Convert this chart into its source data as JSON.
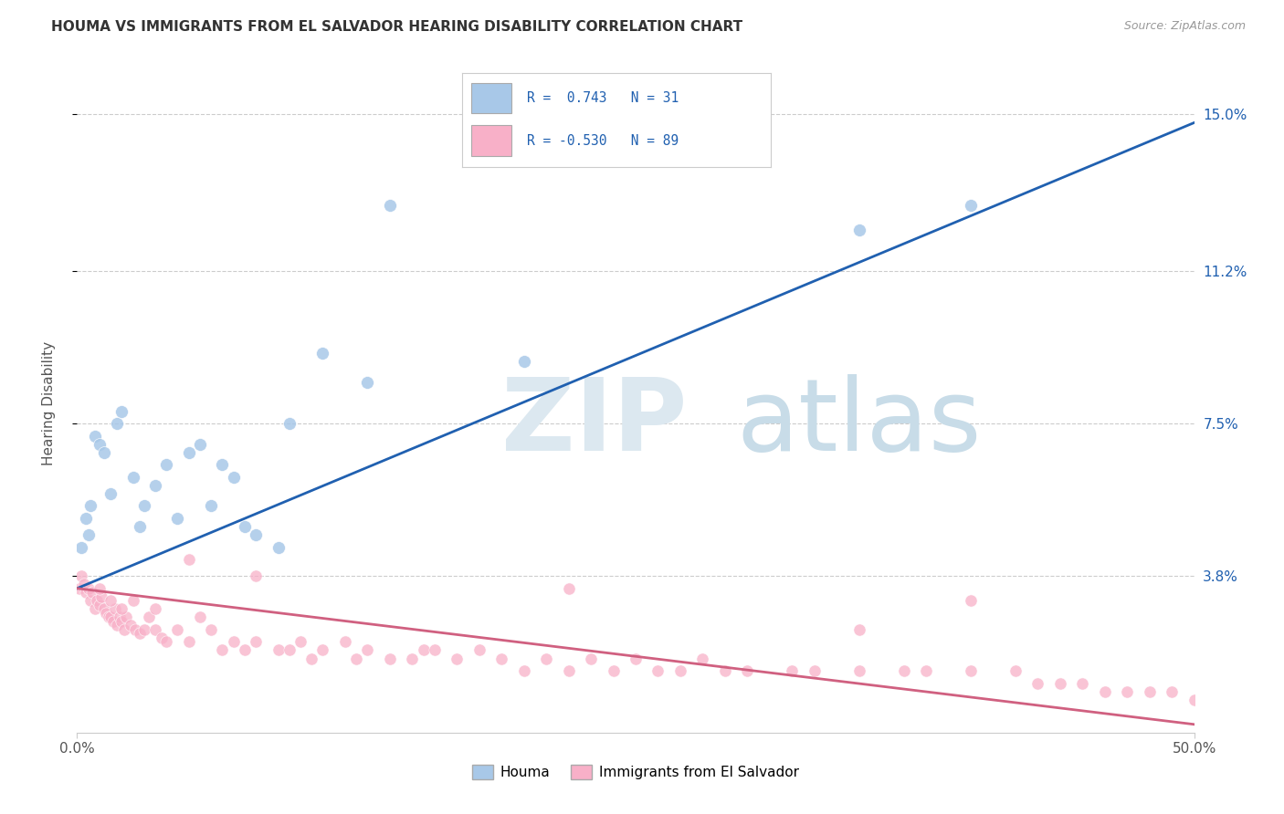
{
  "title": "HOUMA VS IMMIGRANTS FROM EL SALVADOR HEARING DISABILITY CORRELATION CHART",
  "source": "Source: ZipAtlas.com",
  "ylabel_label": "Hearing Disability",
  "legend_labels": [
    "Houma",
    "Immigrants from El Salvador"
  ],
  "blue_R": "0.743",
  "blue_N": "31",
  "pink_R": "-0.530",
  "pink_N": "89",
  "blue_color": "#a8c8e8",
  "pink_color": "#f8b0c8",
  "blue_line_color": "#2060b0",
  "pink_line_color": "#d06080",
  "blue_scatter_x": [
    0.2,
    0.4,
    0.5,
    0.6,
    0.8,
    1.0,
    1.2,
    1.5,
    1.8,
    2.0,
    2.5,
    2.8,
    3.0,
    3.5,
    4.0,
    4.5,
    5.0,
    5.5,
    6.0,
    6.5,
    7.0,
    7.5,
    8.0,
    9.0,
    9.5,
    11.0,
    13.0,
    14.0,
    20.0,
    35.0,
    40.0
  ],
  "blue_scatter_y": [
    4.5,
    5.2,
    4.8,
    5.5,
    7.2,
    7.0,
    6.8,
    5.8,
    7.5,
    7.8,
    6.2,
    5.0,
    5.5,
    6.0,
    6.5,
    5.2,
    6.8,
    7.0,
    5.5,
    6.5,
    6.2,
    5.0,
    4.8,
    4.5,
    7.5,
    9.2,
    8.5,
    12.8,
    9.0,
    12.2,
    12.8
  ],
  "pink_scatter_x": [
    0.1,
    0.2,
    0.3,
    0.4,
    0.5,
    0.6,
    0.7,
    0.8,
    0.9,
    1.0,
    1.1,
    1.2,
    1.3,
    1.4,
    1.5,
    1.6,
    1.7,
    1.8,
    1.9,
    2.0,
    2.1,
    2.2,
    2.4,
    2.6,
    2.8,
    3.0,
    3.2,
    3.5,
    3.8,
    4.0,
    4.5,
    5.0,
    5.5,
    6.0,
    6.5,
    7.0,
    7.5,
    8.0,
    9.0,
    9.5,
    10.0,
    10.5,
    11.0,
    12.0,
    12.5,
    13.0,
    14.0,
    15.0,
    15.5,
    16.0,
    17.0,
    18.0,
    19.0,
    20.0,
    21.0,
    22.0,
    23.0,
    24.0,
    25.0,
    26.0,
    27.0,
    28.0,
    29.0,
    30.0,
    32.0,
    33.0,
    35.0,
    37.0,
    38.0,
    40.0,
    42.0,
    43.0,
    44.0,
    45.0,
    46.0,
    47.0,
    48.0,
    49.0,
    50.0,
    22.0,
    35.0,
    8.0,
    5.0,
    3.5,
    2.5,
    2.0,
    1.5,
    1.0,
    40.0
  ],
  "pink_scatter_y": [
    3.5,
    3.8,
    3.6,
    3.4,
    3.5,
    3.2,
    3.4,
    3.0,
    3.2,
    3.1,
    3.3,
    3.0,
    2.9,
    2.8,
    2.8,
    2.7,
    3.0,
    2.6,
    2.8,
    2.7,
    2.5,
    2.8,
    2.6,
    2.5,
    2.4,
    2.5,
    2.8,
    2.5,
    2.3,
    2.2,
    2.5,
    2.2,
    2.8,
    2.5,
    2.0,
    2.2,
    2.0,
    2.2,
    2.0,
    2.0,
    2.2,
    1.8,
    2.0,
    2.2,
    1.8,
    2.0,
    1.8,
    1.8,
    2.0,
    2.0,
    1.8,
    2.0,
    1.8,
    1.5,
    1.8,
    1.5,
    1.8,
    1.5,
    1.8,
    1.5,
    1.5,
    1.8,
    1.5,
    1.5,
    1.5,
    1.5,
    1.5,
    1.5,
    1.5,
    1.5,
    1.5,
    1.2,
    1.2,
    1.2,
    1.0,
    1.0,
    1.0,
    1.0,
    0.8,
    3.5,
    2.5,
    3.8,
    4.2,
    3.0,
    3.2,
    3.0,
    3.2,
    3.5,
    3.2
  ],
  "xlim": [
    0,
    50
  ],
  "ylim": [
    0,
    16
  ],
  "yticks_vals": [
    3.8,
    7.5,
    11.2,
    15.0
  ],
  "xticks_vals": [
    0,
    50
  ],
  "background_color": "#ffffff",
  "grid_color": "#cccccc",
  "blue_line_start_y": 3.5,
  "blue_line_end_y": 14.8,
  "pink_line_start_y": 3.5,
  "pink_line_end_y": 0.2
}
